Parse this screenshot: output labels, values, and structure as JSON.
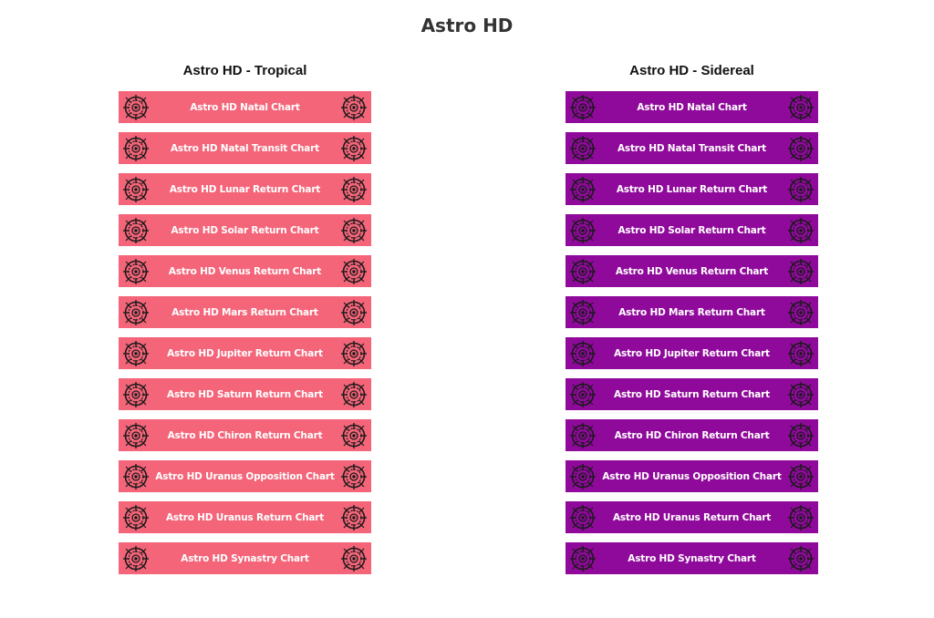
{
  "page": {
    "title": "Astro HD"
  },
  "colors": {
    "tropical_button": "#f46579",
    "sidereal_button": "#8f0a9b",
    "button_text": "#ffffff",
    "icon_stroke": "#1a1a1a"
  },
  "tropical": {
    "heading": "Astro HD - Tropical",
    "items": [
      {
        "label": "Astro HD Natal Chart"
      },
      {
        "label": "Astro HD Natal Transit Chart"
      },
      {
        "label": "Astro HD Lunar Return Chart"
      },
      {
        "label": "Astro HD Solar Return Chart"
      },
      {
        "label": "Astro HD Venus Return Chart"
      },
      {
        "label": "Astro HD Mars Return Chart"
      },
      {
        "label": "Astro HD Jupiter Return Chart"
      },
      {
        "label": "Astro HD Saturn Return Chart"
      },
      {
        "label": "Astro HD Chiron Return Chart"
      },
      {
        "label": "Astro HD Uranus Opposition Chart"
      },
      {
        "label": "Astro HD Uranus Return Chart"
      },
      {
        "label": "Astro HD Synastry Chart"
      }
    ]
  },
  "sidereal": {
    "heading": "Astro HD - Sidereal",
    "items": [
      {
        "label": "Astro HD Natal Chart"
      },
      {
        "label": "Astro HD Natal Transit Chart"
      },
      {
        "label": "Astro HD Lunar Return Chart"
      },
      {
        "label": "Astro HD Solar Return Chart"
      },
      {
        "label": "Astro HD Venus Return Chart"
      },
      {
        "label": "Astro HD Mars Return Chart"
      },
      {
        "label": "Astro HD Jupiter Return Chart"
      },
      {
        "label": "Astro HD Saturn Return Chart"
      },
      {
        "label": "Astro HD Chiron Return Chart"
      },
      {
        "label": "Astro HD Uranus Opposition Chart"
      },
      {
        "label": "Astro HD Uranus Return Chart"
      },
      {
        "label": "Astro HD Synastry Chart"
      }
    ]
  },
  "icons": {
    "left": "zodiac-wheel-icon",
    "right": "zodiac-wheel-icon"
  }
}
